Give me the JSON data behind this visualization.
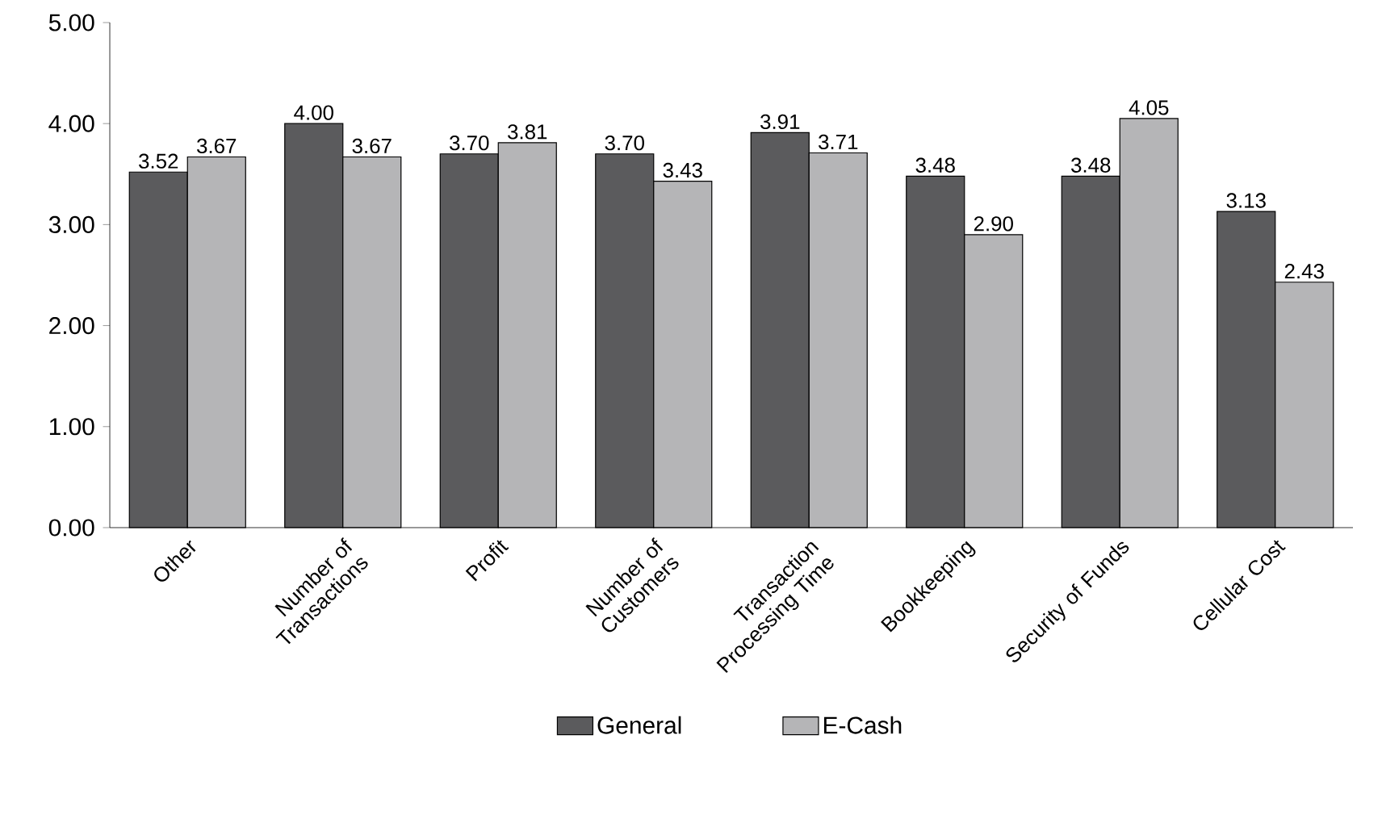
{
  "chart_data": {
    "type": "bar",
    "categories": [
      "Other",
      "Number of Transactions",
      "Profit",
      "Number of Customers",
      "Transaction Processing Time",
      "Bookkeeping",
      "Security of Funds",
      "Cellular Cost"
    ],
    "series": [
      {
        "name": "General",
        "color": "#5b5b5d",
        "values": [
          3.52,
          4.0,
          3.7,
          3.7,
          3.91,
          3.48,
          3.48,
          3.13
        ],
        "value_labels": [
          "3.52",
          "4.00",
          "3.70",
          "3.70",
          "3.91",
          "3.48",
          "3.48",
          "3.13"
        ]
      },
      {
        "name": "E-Cash",
        "color": "#b5b5b7",
        "values": [
          3.67,
          3.67,
          3.81,
          3.43,
          3.71,
          2.9,
          4.05,
          2.43
        ],
        "value_labels": [
          "3.67",
          "3.67",
          "3.81",
          "3.43",
          "3.71",
          "2.90",
          "4.05",
          "2.43"
        ]
      }
    ],
    "ylim": [
      0,
      5
    ],
    "yticks": [
      {
        "value": 0,
        "label": "0.00"
      },
      {
        "value": 1,
        "label": "1.00"
      },
      {
        "value": 2,
        "label": "2.00"
      },
      {
        "value": 3,
        "label": "3.00"
      },
      {
        "value": 4,
        "label": "4.00"
      },
      {
        "value": 5,
        "label": "5.00"
      }
    ],
    "grid": false,
    "legend": "bottom"
  }
}
